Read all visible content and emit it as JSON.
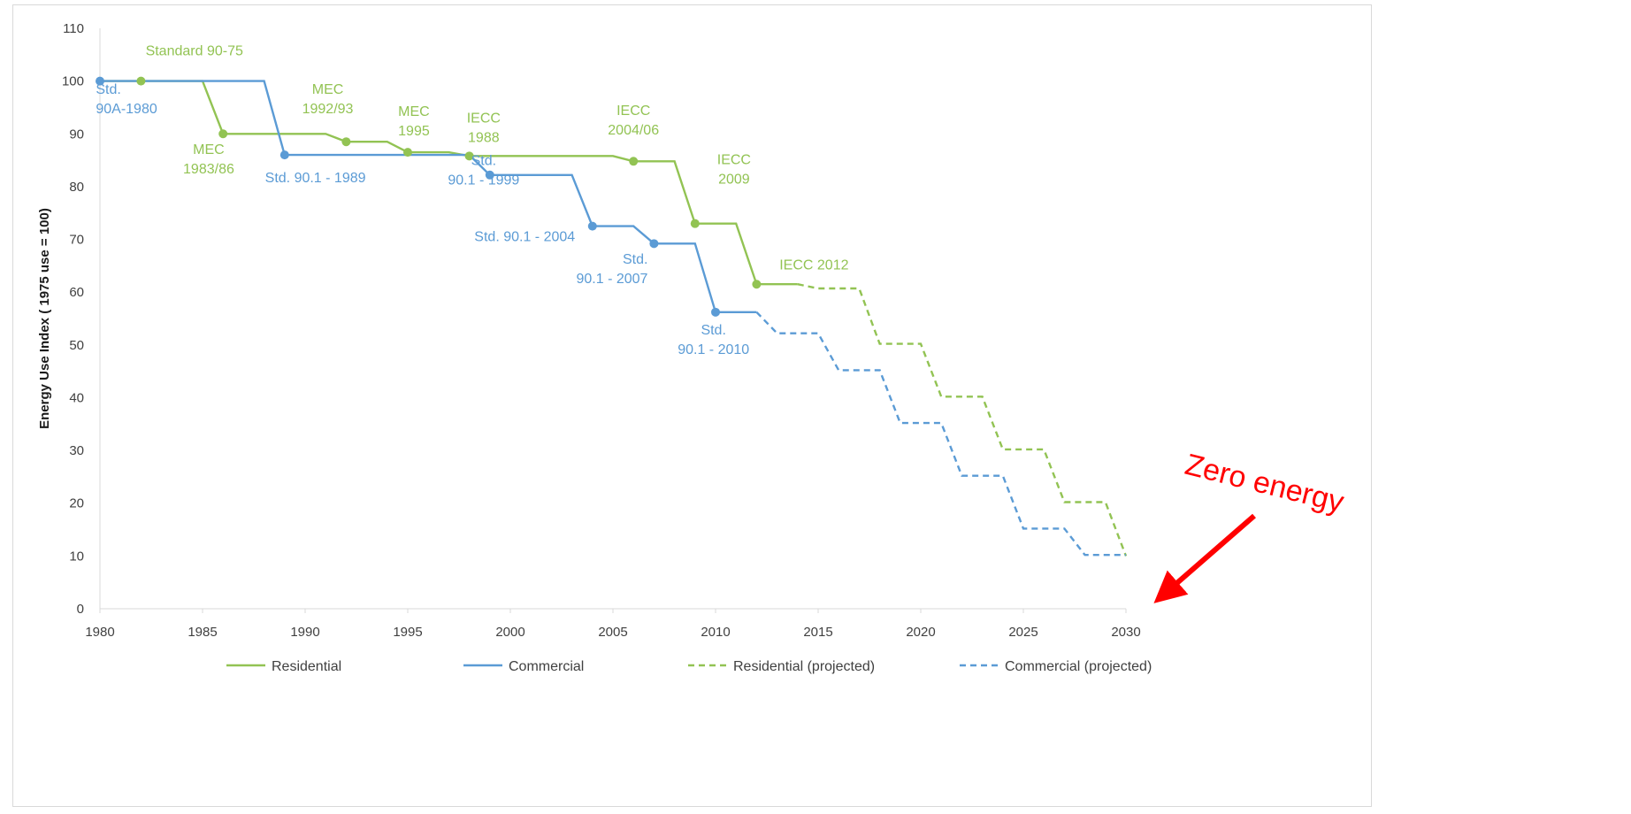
{
  "colors": {
    "residential": "#92c353",
    "commercial": "#5b9bd5",
    "callout": "#ff0000",
    "axis": "#d9d9d9"
  },
  "chart_data": {
    "type": "line",
    "ylabel": "Energy Use Index ( 1975 use = 100)",
    "xlabel": "",
    "xlim": [
      1980,
      2030
    ],
    "ylim": [
      0,
      110
    ],
    "x_ticks": [
      1980,
      1985,
      1990,
      1995,
      2000,
      2005,
      2010,
      2015,
      2020,
      2025,
      2030
    ],
    "y_ticks": [
      0,
      10,
      20,
      30,
      40,
      50,
      60,
      70,
      80,
      90,
      100,
      110
    ],
    "grid": false,
    "legend_position": "bottom",
    "series": [
      {
        "name": "Residential",
        "color": "#92c353",
        "dash": "solid",
        "points": [
          [
            1980,
            100
          ],
          [
            1985,
            100
          ],
          [
            1986,
            90
          ],
          [
            1991,
            90
          ],
          [
            1992,
            88.5
          ],
          [
            1994,
            88.5
          ],
          [
            1995,
            86.5
          ],
          [
            1997,
            86.5
          ],
          [
            1998,
            85.8
          ],
          [
            2005,
            85.8
          ],
          [
            2006,
            84.8
          ],
          [
            2008,
            84.8
          ],
          [
            2009,
            73
          ],
          [
            2011,
            73
          ],
          [
            2012,
            61.5
          ],
          [
            2014,
            61.5
          ]
        ]
      },
      {
        "name": "Commercial",
        "color": "#5b9bd5",
        "dash": "solid",
        "points": [
          [
            1980,
            100
          ],
          [
            1988,
            100
          ],
          [
            1989,
            86
          ],
          [
            1998,
            86
          ],
          [
            1999,
            82.2
          ],
          [
            2003,
            82.2
          ],
          [
            2004,
            72.5
          ],
          [
            2006,
            72.5
          ],
          [
            2007,
            69.2
          ],
          [
            2009,
            69.2
          ],
          [
            2010,
            56.2
          ],
          [
            2012,
            56.2
          ]
        ]
      },
      {
        "name": "Residential (projected)",
        "color": "#92c353",
        "dash": "dashed",
        "points": [
          [
            2014,
            61.5
          ],
          [
            2015,
            60.7
          ],
          [
            2017,
            60.7
          ],
          [
            2018,
            50.2
          ],
          [
            2020,
            50.2
          ],
          [
            2021,
            40.2
          ],
          [
            2023,
            40.2
          ],
          [
            2024,
            30.2
          ],
          [
            2026,
            30.2
          ],
          [
            2027,
            20.2
          ],
          [
            2029,
            20.2
          ],
          [
            2030,
            10
          ]
        ]
      },
      {
        "name": "Commercial (projected)",
        "color": "#5b9bd5",
        "dash": "dashed",
        "points": [
          [
            2012,
            56.2
          ],
          [
            2013,
            52.2
          ],
          [
            2015,
            52.2
          ],
          [
            2016,
            45.2
          ],
          [
            2018,
            45.2
          ],
          [
            2019,
            35.2
          ],
          [
            2021,
            35.2
          ],
          [
            2022,
            25.2
          ],
          [
            2024,
            25.2
          ],
          [
            2025,
            15.2
          ],
          [
            2027,
            15.2
          ],
          [
            2028,
            10.2
          ],
          [
            2030,
            10.2
          ]
        ]
      }
    ],
    "markers": [
      {
        "series": "Commercial",
        "x": 1980,
        "y": 100
      },
      {
        "series": "Residential",
        "x": 1982,
        "y": 100
      },
      {
        "series": "Residential",
        "x": 1986,
        "y": 90
      },
      {
        "series": "Commercial",
        "x": 1989,
        "y": 86
      },
      {
        "series": "Residential",
        "x": 1992,
        "y": 88.5
      },
      {
        "series": "Residential",
        "x": 1995,
        "y": 86.5
      },
      {
        "series": "Residential",
        "x": 1998,
        "y": 85.8
      },
      {
        "series": "Commercial",
        "x": 1999,
        "y": 82.2
      },
      {
        "series": "Commercial",
        "x": 2004,
        "y": 72.5
      },
      {
        "series": "Residential",
        "x": 2006,
        "y": 84.8
      },
      {
        "series": "Commercial",
        "x": 2007,
        "y": 69.2
      },
      {
        "series": "Residential",
        "x": 2009,
        "y": 73
      },
      {
        "series": "Commercial",
        "x": 2010,
        "y": 56.2
      },
      {
        "series": "Residential",
        "x": 2012,
        "y": 61.5
      }
    ],
    "annotations": [
      {
        "lines": [
          "Standard 90-75"
        ],
        "x": 1984.6,
        "y": 104.9,
        "series": "Residential",
        "align": "middle"
      },
      {
        "lines": [
          "Std.",
          "90A-1980"
        ],
        "x": 1979.8,
        "y": 97.6,
        "series": "Commercial",
        "align": "start"
      },
      {
        "lines": [
          "MEC",
          "1983/86"
        ],
        "x": 1985.3,
        "y": 86.2,
        "series": "Residential",
        "align": "middle"
      },
      {
        "lines": [
          "MEC",
          "1992/93"
        ],
        "x": 1991.1,
        "y": 97.6,
        "series": "Residential",
        "align": "middle"
      },
      {
        "lines": [
          "Std. 90.1 - 1989"
        ],
        "x": 1990.5,
        "y": 80.8,
        "series": "Commercial",
        "align": "middle"
      },
      {
        "lines": [
          "MEC",
          "1995"
        ],
        "x": 1995.3,
        "y": 93.4,
        "series": "Residential",
        "align": "middle"
      },
      {
        "lines": [
          "IECC",
          "1988"
        ],
        "x": 1998.7,
        "y": 92.1,
        "series": "Residential",
        "align": "middle"
      },
      {
        "lines": [
          "Std.",
          "90.1 - 1999"
        ],
        "x": 1998.7,
        "y": 84.1,
        "series": "Commercial",
        "align": "middle"
      },
      {
        "lines": [
          "IECC",
          "2004/06"
        ],
        "x": 2006.0,
        "y": 93.6,
        "series": "Residential",
        "align": "middle"
      },
      {
        "lines": [
          "Std. 90.1 - 2004"
        ],
        "x": 2000.7,
        "y": 69.7,
        "series": "Commercial",
        "align": "middle"
      },
      {
        "lines": [
          "IECC",
          "2009"
        ],
        "x": 2010.9,
        "y": 84.3,
        "series": "Residential",
        "align": "middle"
      },
      {
        "lines": [
          "Std.",
          "90.1 - 2007"
        ],
        "x": 2006.7,
        "y": 65.4,
        "series": "Commercial",
        "align": "end"
      },
      {
        "lines": [
          "IECC 2012"
        ],
        "x": 2014.8,
        "y": 64.3,
        "series": "Residential",
        "align": "middle"
      },
      {
        "lines": [
          "Std.",
          "90.1 - 2010"
        ],
        "x": 2009.9,
        "y": 52.0,
        "series": "Commercial",
        "align": "middle"
      }
    ],
    "callout": {
      "text": "Zero energy"
    }
  }
}
